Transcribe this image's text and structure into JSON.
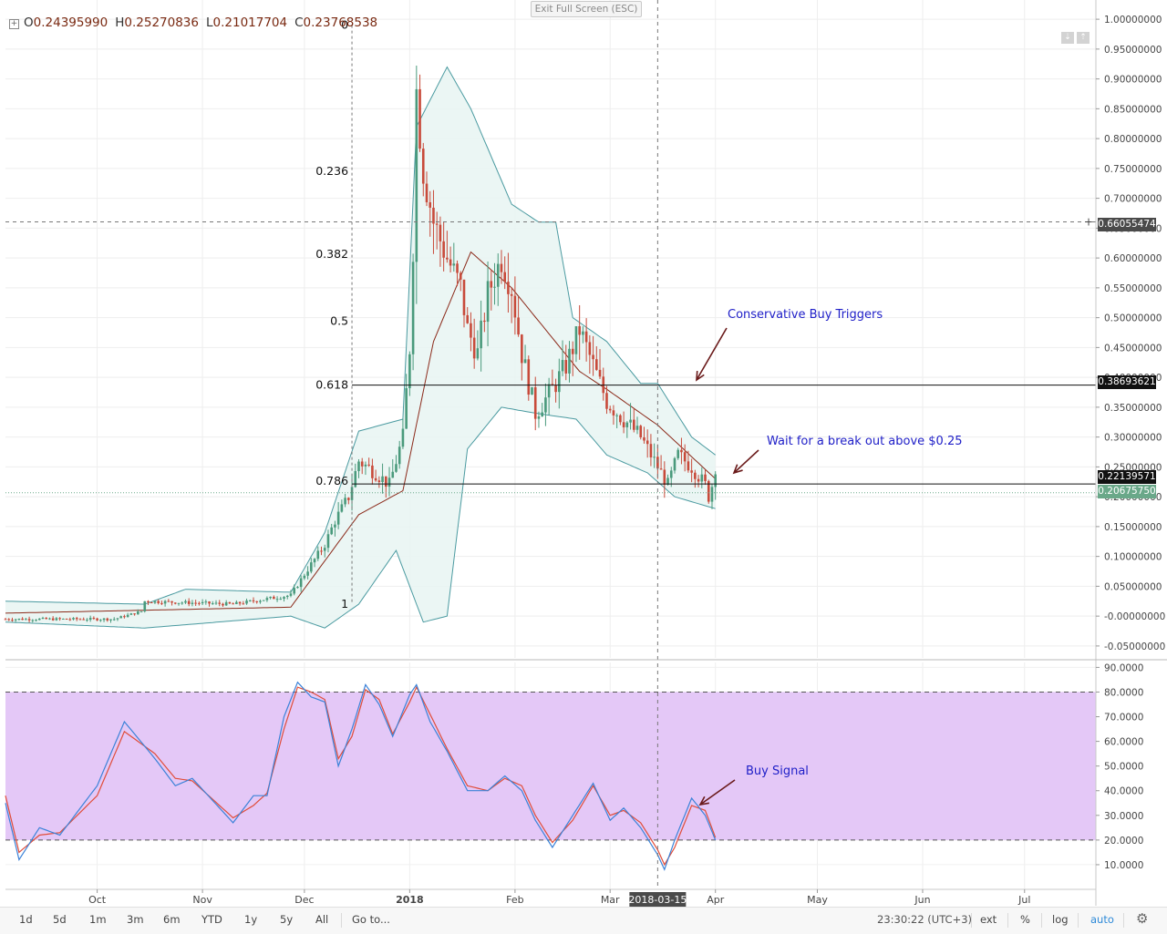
{
  "toolbar": {
    "ohlc": {
      "o_label": "O",
      "o": "0.24395990",
      "h_label": "H",
      "h": "0.25270836",
      "l_label": "L",
      "l": "0.21017704",
      "c_label": "C",
      "c": "0.23768538"
    },
    "exit_fullscreen": "Exit Full Screen (ESC)"
  },
  "price_tags": {
    "crosshair": "0.66055474",
    "resistance": "0.38693621",
    "support": "0.22139571",
    "last": "0.20675750"
  },
  "colors": {
    "bull": "#4a9a7c",
    "bear": "#c84a3a",
    "band": "#4a9aa0",
    "band_fill": "#e7f4f2",
    "mid": "#8b2a1a",
    "k_line": "#3b82d8",
    "d_line": "#e04d3a",
    "stoch_fill": "#e4c8f7",
    "annot": "#2020c8",
    "arrow": "#6a1a1a",
    "last_tag": "#6aa889"
  },
  "annotations": {
    "conservative": "Conservative Buy Triggers",
    "breakout": "Wait for a break out above $0.25",
    "buy_signal": "Buy Signal"
  },
  "bottom_bar": {
    "timeframes": [
      "1d",
      "5d",
      "1m",
      "3m",
      "6m",
      "YTD",
      "1y",
      "5y",
      "All"
    ],
    "goto": "Go to...",
    "clock": "23:30:22 (UTC+3)",
    "ext": "ext",
    "pct": "%",
    "log": "log",
    "auto": "auto",
    "settings_icon": "gear-icon"
  },
  "chart_data": [
    {
      "type": "candlestick",
      "series_name": "",
      "ylim": [
        -0.07,
        1.02
      ],
      "y_ticks": [
        "1.00000000",
        "0.95000000",
        "0.90000000",
        "0.85000000",
        "0.80000000",
        "0.75000000",
        "0.70000000",
        "0.65000000",
        "0.60000000",
        "0.55000000",
        "0.50000000",
        "0.45000000",
        "0.40000000",
        "0.35000000",
        "0.30000000",
        "0.25000000",
        "0.20000000",
        "0.15000000",
        "0.10000000",
        "0.05000000",
        "-0.00000000",
        "-0.05000000"
      ],
      "y_tick_values": [
        1.0,
        0.95,
        0.9,
        0.85,
        0.8,
        0.75,
        0.7,
        0.65,
        0.6,
        0.55,
        0.5,
        0.45,
        0.4,
        0.35,
        0.3,
        0.25,
        0.2,
        0.15,
        0.1,
        0.05,
        0.0,
        -0.05
      ],
      "x_labels": [
        {
          "label": "Oct",
          "date": "2017-10-01"
        },
        {
          "label": "Nov",
          "date": "2017-11-01"
        },
        {
          "label": "Dec",
          "date": "2017-12-01"
        },
        {
          "label": "2018",
          "date": "2018-01-01"
        },
        {
          "label": "Feb",
          "date": "2018-02-01"
        },
        {
          "label": "Mar",
          "date": "2018-03-01"
        },
        {
          "label": "Apr",
          "date": "2018-04-01"
        },
        {
          "label": "May",
          "date": "2018-05-01"
        },
        {
          "label": "Jun",
          "date": "2018-06-01"
        },
        {
          "label": "Jul",
          "date": "2018-07-01"
        }
      ],
      "crosshair_date_label": "2018-03-15",
      "crosshair_date": "2018-03-15",
      "crosshair_price": 0.66055474,
      "x_range": [
        "2017-09-04",
        "2018-07-22"
      ],
      "close_keypoints": [
        [
          "2017-09-04",
          -0.005
        ],
        [
          "2017-10-06",
          -0.005
        ],
        [
          "2017-10-14",
          0.008
        ],
        [
          "2017-10-15",
          0.025
        ],
        [
          "2017-11-10",
          0.02
        ],
        [
          "2017-11-27",
          0.035
        ],
        [
          "2017-12-01",
          0.07
        ],
        [
          "2017-12-07",
          0.12
        ],
        [
          "2017-12-10",
          0.16
        ],
        [
          "2017-12-14",
          0.2
        ],
        [
          "2017-12-17",
          0.26
        ],
        [
          "2017-12-22",
          0.24
        ],
        [
          "2017-12-26",
          0.22
        ],
        [
          "2017-12-30",
          0.3
        ],
        [
          "2018-01-01",
          0.45
        ],
        [
          "2018-01-02",
          0.62
        ],
        [
          "2018-01-03",
          0.88
        ],
        [
          "2018-01-05",
          0.75
        ],
        [
          "2018-01-08",
          0.66
        ],
        [
          "2018-01-12",
          0.6
        ],
        [
          "2018-01-16",
          0.55
        ],
        [
          "2018-01-18",
          0.48
        ],
        [
          "2018-01-21",
          0.44
        ],
        [
          "2018-01-24",
          0.54
        ],
        [
          "2018-01-28",
          0.6
        ],
        [
          "2018-01-31",
          0.55
        ],
        [
          "2018-02-03",
          0.44
        ],
        [
          "2018-02-07",
          0.34
        ],
        [
          "2018-02-12",
          0.38
        ],
        [
          "2018-02-16",
          0.42
        ],
        [
          "2018-02-20",
          0.48
        ],
        [
          "2018-02-24",
          0.42
        ],
        [
          "2018-02-28",
          0.36
        ],
        [
          "2018-03-05",
          0.33
        ],
        [
          "2018-03-10",
          0.3
        ],
        [
          "2018-03-15",
          0.25
        ],
        [
          "2018-03-18",
          0.22
        ],
        [
          "2018-03-21",
          0.27
        ],
        [
          "2018-03-25",
          0.25
        ],
        [
          "2018-03-29",
          0.22
        ],
        [
          "2018-03-30",
          0.2
        ],
        [
          "2018-04-01",
          0.2376
        ]
      ],
      "upper_band_keypoints": [
        [
          "2017-09-04",
          0.025
        ],
        [
          "2017-10-15",
          0.02
        ],
        [
          "2017-10-27",
          0.045
        ],
        [
          "2017-11-27",
          0.04
        ],
        [
          "2017-12-07",
          0.14
        ],
        [
          "2017-12-17",
          0.31
        ],
        [
          "2017-12-30",
          0.33
        ],
        [
          "2018-01-03",
          0.82
        ],
        [
          "2018-01-12",
          0.92
        ],
        [
          "2018-01-19",
          0.85
        ],
        [
          "2018-01-31",
          0.69
        ],
        [
          "2018-02-08",
          0.66
        ],
        [
          "2018-02-13",
          0.66
        ],
        [
          "2018-02-18",
          0.5
        ],
        [
          "2018-02-28",
          0.46
        ],
        [
          "2018-03-10",
          0.39
        ],
        [
          "2018-03-15",
          0.39
        ],
        [
          "2018-03-25",
          0.3
        ],
        [
          "2018-04-01",
          0.27
        ]
      ],
      "lower_band_keypoints": [
        [
          "2017-09-04",
          -0.01
        ],
        [
          "2017-10-15",
          -0.02
        ],
        [
          "2017-11-27",
          0.0
        ],
        [
          "2017-12-07",
          -0.02
        ],
        [
          "2017-12-17",
          0.02
        ],
        [
          "2017-12-28",
          0.11
        ],
        [
          "2018-01-01",
          0.05
        ],
        [
          "2018-01-05",
          -0.01
        ],
        [
          "2018-01-12",
          0.0
        ],
        [
          "2018-01-18",
          0.28
        ],
        [
          "2018-01-28",
          0.35
        ],
        [
          "2018-02-07",
          0.34
        ],
        [
          "2018-02-19",
          0.33
        ],
        [
          "2018-02-28",
          0.27
        ],
        [
          "2018-03-12",
          0.24
        ],
        [
          "2018-03-20",
          0.2
        ],
        [
          "2018-04-01",
          0.18
        ]
      ],
      "mid_band_keypoints": [
        [
          "2017-09-04",
          0.005
        ],
        [
          "2017-11-27",
          0.015
        ],
        [
          "2017-12-17",
          0.17
        ],
        [
          "2017-12-30",
          0.21
        ],
        [
          "2018-01-08",
          0.46
        ],
        [
          "2018-01-19",
          0.61
        ],
        [
          "2018-01-31",
          0.55
        ],
        [
          "2018-02-10",
          0.48
        ],
        [
          "2018-02-20",
          0.41
        ],
        [
          "2018-02-28",
          0.38
        ],
        [
          "2018-03-15",
          0.32
        ],
        [
          "2018-04-01",
          0.23
        ]
      ],
      "fibonacci": [
        {
          "label": "0",
          "value": 0.99
        },
        {
          "label": "0.236",
          "value": 0.745
        },
        {
          "label": "0.382",
          "value": 0.606
        },
        {
          "label": "0.5",
          "value": 0.494
        },
        {
          "label": "0.618",
          "value": 0.3869
        },
        {
          "label": "0.786",
          "value": 0.226
        },
        {
          "label": "1",
          "value": 0.02
        }
      ],
      "horizontal_lines": [
        {
          "name": "resistance",
          "value": 0.38693621
        },
        {
          "name": "support",
          "value": 0.22139571
        },
        {
          "name": "last",
          "value": 0.2067575
        }
      ]
    },
    {
      "type": "line",
      "series_name": "",
      "ylim": [
        0,
        92
      ],
      "y_ticks": [
        "90.0000",
        "80.0000",
        "70.0000",
        "60.0000",
        "50.0000",
        "40.0000",
        "30.0000",
        "20.0000",
        "10.0000"
      ],
      "y_tick_values": [
        90,
        80,
        70,
        60,
        50,
        40,
        30,
        20,
        10
      ],
      "band": [
        20,
        80
      ],
      "k_keypoints": [
        [
          "2017-09-04",
          35
        ],
        [
          "2017-09-08",
          12
        ],
        [
          "2017-09-14",
          25
        ],
        [
          "2017-09-20",
          22
        ],
        [
          "2017-10-01",
          42
        ],
        [
          "2017-10-09",
          68
        ],
        [
          "2017-10-18",
          53
        ],
        [
          "2017-10-24",
          42
        ],
        [
          "2017-10-29",
          45
        ],
        [
          "2017-11-10",
          27
        ],
        [
          "2017-11-16",
          38
        ],
        [
          "2017-11-20",
          38
        ],
        [
          "2017-11-25",
          70
        ],
        [
          "2017-11-29",
          84
        ],
        [
          "2017-12-03",
          78
        ],
        [
          "2017-12-07",
          76
        ],
        [
          "2017-12-11",
          50
        ],
        [
          "2017-12-15",
          65
        ],
        [
          "2017-12-19",
          83
        ],
        [
          "2017-12-23",
          75
        ],
        [
          "2017-12-27",
          62
        ],
        [
          "2018-01-01",
          79
        ],
        [
          "2018-01-03",
          83
        ],
        [
          "2018-01-07",
          68
        ],
        [
          "2018-01-12",
          56
        ],
        [
          "2018-01-18",
          40
        ],
        [
          "2018-01-24",
          40
        ],
        [
          "2018-01-29",
          46
        ],
        [
          "2018-02-03",
          40
        ],
        [
          "2018-02-07",
          28
        ],
        [
          "2018-02-12",
          17
        ],
        [
          "2018-02-18",
          30
        ],
        [
          "2018-02-24",
          43
        ],
        [
          "2018-03-01",
          28
        ],
        [
          "2018-03-05",
          33
        ],
        [
          "2018-03-10",
          25
        ],
        [
          "2018-03-15",
          14
        ],
        [
          "2018-03-17",
          8
        ],
        [
          "2018-03-20",
          20
        ],
        [
          "2018-03-25",
          37
        ],
        [
          "2018-03-29",
          30
        ],
        [
          "2018-04-01",
          20
        ]
      ],
      "d_keypoints": [
        [
          "2017-09-04",
          38
        ],
        [
          "2017-09-08",
          15
        ],
        [
          "2017-09-14",
          22
        ],
        [
          "2017-09-20",
          23
        ],
        [
          "2017-10-01",
          38
        ],
        [
          "2017-10-09",
          64
        ],
        [
          "2017-10-18",
          55
        ],
        [
          "2017-10-24",
          45
        ],
        [
          "2017-10-29",
          44
        ],
        [
          "2017-11-10",
          29
        ],
        [
          "2017-11-16",
          34
        ],
        [
          "2017-11-20",
          39
        ],
        [
          "2017-11-25",
          65
        ],
        [
          "2017-11-29",
          82
        ],
        [
          "2017-12-03",
          80
        ],
        [
          "2017-12-07",
          77
        ],
        [
          "2017-12-11",
          53
        ],
        [
          "2017-12-15",
          62
        ],
        [
          "2017-12-19",
          81
        ],
        [
          "2017-12-23",
          77
        ],
        [
          "2017-12-27",
          63
        ],
        [
          "2018-01-01",
          76
        ],
        [
          "2018-01-03",
          82
        ],
        [
          "2018-01-07",
          71
        ],
        [
          "2018-01-12",
          57
        ],
        [
          "2018-01-18",
          42
        ],
        [
          "2018-01-24",
          40
        ],
        [
          "2018-01-29",
          45
        ],
        [
          "2018-02-03",
          42
        ],
        [
          "2018-02-07",
          30
        ],
        [
          "2018-02-12",
          19
        ],
        [
          "2018-02-18",
          28
        ],
        [
          "2018-02-24",
          42
        ],
        [
          "2018-03-01",
          30
        ],
        [
          "2018-03-05",
          32
        ],
        [
          "2018-03-10",
          27
        ],
        [
          "2018-03-15",
          16
        ],
        [
          "2018-03-17",
          10
        ],
        [
          "2018-03-20",
          17
        ],
        [
          "2018-03-25",
          34
        ],
        [
          "2018-03-29",
          32
        ],
        [
          "2018-04-01",
          21
        ]
      ]
    }
  ]
}
